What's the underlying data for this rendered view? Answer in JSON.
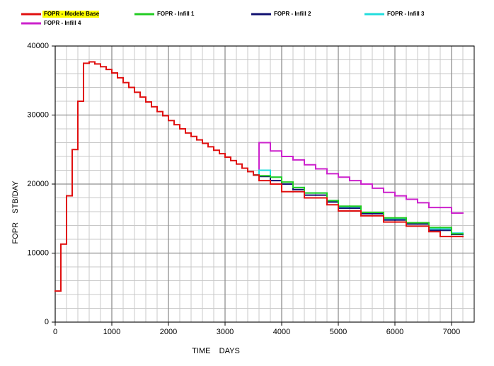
{
  "chart_data": {
    "type": "step",
    "xlabel": "TIME    DAYS",
    "ylabel": "FOPR    STB/DAY",
    "x": [
      0,
      100,
      200,
      300,
      400,
      500,
      600,
      700,
      800,
      900,
      1000,
      1100,
      1200,
      1300,
      1400,
      1500,
      1600,
      1700,
      1800,
      1900,
      2000,
      2100,
      2200,
      2300,
      2400,
      2500,
      2600,
      2700,
      2800,
      2900,
      3000,
      3100,
      3200,
      3300,
      3400,
      3500,
      3600,
      3800,
      4000,
      4200,
      4400,
      4600,
      4800,
      5000,
      5200,
      5400,
      5600,
      5800,
      6000,
      6200,
      6400,
      6600,
      6800,
      7000,
      7200
    ],
    "series": [
      {
        "name": "FOPR - Modele Base",
        "color": "#e01010",
        "highlight": "#ffff00",
        "values": [
          4500,
          11300,
          18300,
          25000,
          32000,
          37500,
          37700,
          37400,
          37000,
          36600,
          36100,
          35400,
          34700,
          34000,
          33300,
          32600,
          31900,
          31200,
          30500,
          29900,
          29200,
          28600,
          28000,
          27400,
          26900,
          26400,
          25900,
          25400,
          24900,
          24400,
          23900,
          23400,
          22900,
          22300,
          21800,
          21300,
          20500,
          20000,
          18900,
          18900,
          18000,
          18000,
          17000,
          16100,
          16100,
          15400,
          15400,
          14500,
          14500,
          13900,
          13900,
          13100,
          12400,
          12400,
          12400
        ]
      },
      {
        "name": "FOPR - Infill 1",
        "color": "#22cc22",
        "values": [
          null,
          null,
          null,
          null,
          null,
          null,
          null,
          null,
          null,
          null,
          null,
          null,
          null,
          null,
          null,
          null,
          null,
          null,
          null,
          null,
          null,
          null,
          null,
          null,
          null,
          null,
          null,
          null,
          null,
          null,
          null,
          null,
          null,
          null,
          null,
          21300,
          21200,
          21000,
          20300,
          19500,
          18700,
          18700,
          17600,
          16800,
          16800,
          15900,
          15900,
          15100,
          15100,
          14400,
          14400,
          13700,
          13700,
          12800,
          12800
        ]
      },
      {
        "name": "FOPR - Infill 2",
        "color": "#101070",
        "values": [
          null,
          null,
          null,
          null,
          null,
          null,
          null,
          null,
          null,
          null,
          null,
          null,
          null,
          null,
          null,
          null,
          null,
          null,
          null,
          null,
          null,
          null,
          null,
          null,
          null,
          null,
          null,
          null,
          null,
          null,
          null,
          null,
          null,
          null,
          null,
          21300,
          21100,
          20500,
          20000,
          19200,
          18400,
          18400,
          17400,
          16500,
          16500,
          15700,
          15700,
          14800,
          14800,
          14200,
          14200,
          13300,
          13300,
          12700,
          12700
        ]
      },
      {
        "name": "FOPR - Infill 3",
        "color": "#22dddd",
        "values": [
          null,
          null,
          null,
          null,
          null,
          null,
          null,
          null,
          null,
          null,
          null,
          null,
          null,
          null,
          null,
          null,
          null,
          null,
          null,
          null,
          null,
          null,
          null,
          null,
          null,
          null,
          null,
          null,
          null,
          null,
          null,
          null,
          null,
          null,
          null,
          21300,
          22000,
          21000,
          20000,
          19500,
          18700,
          18700,
          17600,
          16700,
          16700,
          15900,
          15900,
          15000,
          15000,
          14300,
          14300,
          13500,
          13500,
          12900,
          12900
        ]
      },
      {
        "name": "FOPR - Infill 4",
        "color": "#cc22cc",
        "values": [
          null,
          null,
          null,
          null,
          null,
          null,
          null,
          null,
          null,
          null,
          null,
          null,
          null,
          null,
          null,
          null,
          null,
          null,
          null,
          null,
          null,
          null,
          null,
          null,
          null,
          null,
          null,
          null,
          null,
          null,
          null,
          null,
          null,
          null,
          null,
          21300,
          26000,
          24800,
          24000,
          23500,
          22800,
          22200,
          21500,
          21000,
          20500,
          20000,
          19400,
          18800,
          18300,
          17800,
          17300,
          16600,
          16600,
          15800,
          15800
        ]
      }
    ],
    "xlim": [
      0,
      7400
    ],
    "xticks": [
      0,
      1000,
      2000,
      3000,
      4000,
      5000,
      6000,
      7000
    ],
    "ylim": [
      0,
      40000
    ],
    "yticks": [
      0,
      10000,
      20000,
      30000,
      40000
    ],
    "grid": true,
    "minor_grid": true
  }
}
